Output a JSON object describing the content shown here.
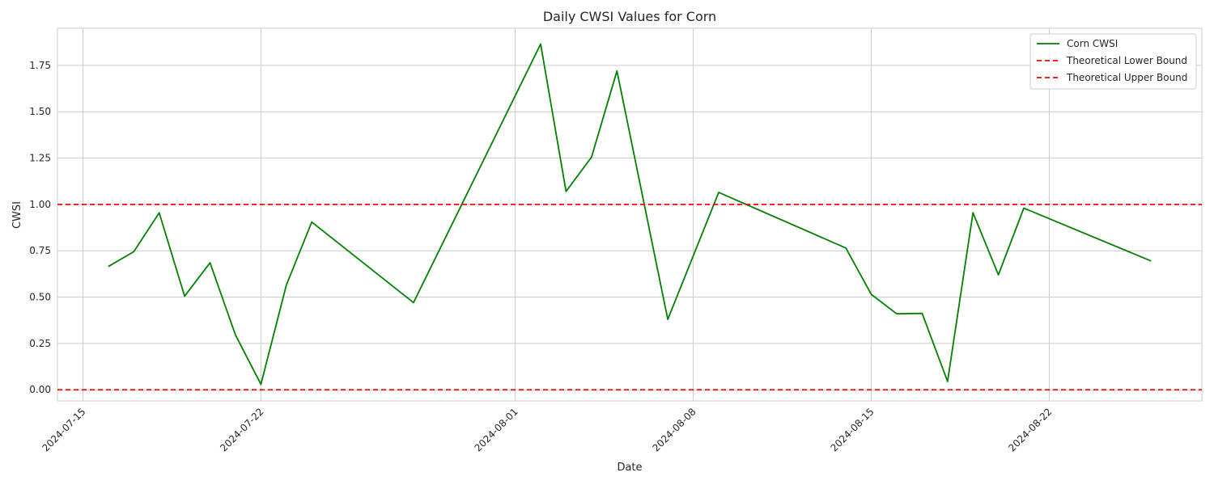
{
  "chart_data": {
    "type": "line",
    "title": "Daily CWSI Values for Corn",
    "xlabel": "Date",
    "ylabel": "CWSI",
    "x_range": [
      "2024-07-14",
      "2024-08-28"
    ],
    "ylim": [
      -0.06,
      1.95
    ],
    "x_ticks": [
      "2024-07-15",
      "2024-07-22",
      "2024-08-01",
      "2024-08-08",
      "2024-08-15",
      "2024-08-22"
    ],
    "y_ticks": [
      0.0,
      0.25,
      0.5,
      0.75,
      1.0,
      1.25,
      1.5,
      1.75
    ],
    "y_tick_labels": [
      "0.00",
      "0.25",
      "0.50",
      "0.75",
      "1.00",
      "1.25",
      "1.50",
      "1.75"
    ],
    "grid": true,
    "legend_position": "top-right",
    "series": [
      {
        "name": "Corn CWSI",
        "color": "#008000",
        "style": "solid",
        "points": [
          {
            "x": "2024-07-16",
            "y": 0.665
          },
          {
            "x": "2024-07-17",
            "y": 0.745
          },
          {
            "x": "2024-07-18",
            "y": 0.955
          },
          {
            "x": "2024-07-19",
            "y": 0.505
          },
          {
            "x": "2024-07-20",
            "y": 0.685
          },
          {
            "x": "2024-07-21",
            "y": 0.295
          },
          {
            "x": "2024-07-22",
            "y": 0.03
          },
          {
            "x": "2024-07-23",
            "y": 0.565
          },
          {
            "x": "2024-07-24",
            "y": 0.905
          },
          {
            "x": "2024-07-28",
            "y": 0.47
          },
          {
            "x": "2024-08-02",
            "y": 1.865
          },
          {
            "x": "2024-08-03",
            "y": 1.07
          },
          {
            "x": "2024-08-04",
            "y": 1.255
          },
          {
            "x": "2024-08-05",
            "y": 1.72
          },
          {
            "x": "2024-08-07",
            "y": 0.38
          },
          {
            "x": "2024-08-09",
            "y": 1.065
          },
          {
            "x": "2024-08-14",
            "y": 0.765
          },
          {
            "x": "2024-08-15",
            "y": 0.515
          },
          {
            "x": "2024-08-16",
            "y": 0.41
          },
          {
            "x": "2024-08-17",
            "y": 0.412
          },
          {
            "x": "2024-08-18",
            "y": 0.045
          },
          {
            "x": "2024-08-19",
            "y": 0.955
          },
          {
            "x": "2024-08-20",
            "y": 0.62
          },
          {
            "x": "2024-08-21",
            "y": 0.98
          },
          {
            "x": "2024-08-26",
            "y": 0.695
          }
        ]
      },
      {
        "name": "Theoretical Lower Bound",
        "color": "#ff0000",
        "style": "dashed",
        "y": 0
      },
      {
        "name": "Theoretical Upper Bound",
        "color": "#ff0000",
        "style": "dashed",
        "y": 1
      }
    ]
  }
}
